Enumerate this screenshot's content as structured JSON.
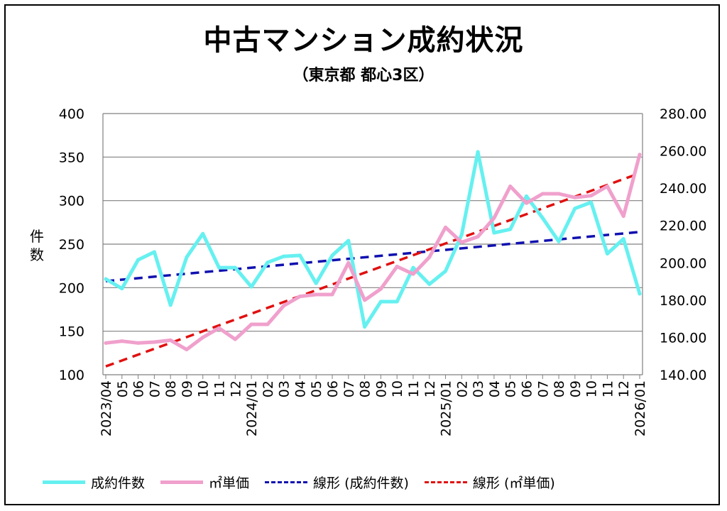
{
  "chart_data": {
    "type": "line",
    "title": "中古マンション成約状況",
    "subtitle": "（東京都 都心3区）",
    "ylabel_left": "件数",
    "left_axis": {
      "min": 100,
      "max": 400,
      "step": 50,
      "ticks": [
        "100",
        "150",
        "200",
        "250",
        "300",
        "350",
        "400"
      ]
    },
    "right_axis": {
      "min": 140,
      "max": 280,
      "step": 20,
      "ticks": [
        "140.00",
        "160.00",
        "180.00",
        "200.00",
        "220.00",
        "240.00",
        "260.00",
        "280.00"
      ]
    },
    "categories": [
      "2023/04",
      "05",
      "06",
      "07",
      "08",
      "09",
      "10",
      "11",
      "12",
      "2024/01",
      "02",
      "03",
      "04",
      "05",
      "06",
      "07",
      "08",
      "09",
      "10",
      "11",
      "12",
      "2025/01",
      "02",
      "03",
      "04",
      "05",
      "06",
      "07",
      "08",
      "09",
      "10",
      "11",
      "12",
      "2026/01"
    ],
    "series": [
      {
        "name": "成約件数",
        "axis": "left",
        "color": "#66f0f0",
        "values": [
          210,
          199,
          232,
          241,
          180,
          235,
          262,
          223,
          223,
          201,
          229,
          236,
          237,
          205,
          237,
          254,
          155,
          184,
          184,
          223,
          204,
          219,
          261,
          356,
          263,
          267,
          305,
          280,
          253,
          291,
          298,
          239,
          256,
          193
        ]
      },
      {
        "name": "㎡単価",
        "axis": "right",
        "color": "#f0a0cc",
        "values": [
          157,
          158,
          157,
          157.5,
          158.5,
          153.5,
          160,
          165,
          159,
          167,
          167,
          177,
          182,
          183,
          183,
          200,
          180,
          186,
          198,
          194,
          203,
          219,
          211,
          214,
          224,
          241,
          232,
          237,
          237,
          235,
          236,
          241,
          225,
          258
        ]
      }
    ],
    "trendlines": [
      {
        "name": "線形 (成約件数)",
        "axis": "left",
        "color": "#1010b0",
        "start": 207.5,
        "end": 264
      },
      {
        "name": "線形 (㎡単価)",
        "axis": "right",
        "color": "#e01010",
        "start": 144.5,
        "end": 248
      }
    ],
    "legend": [
      "成約件数",
      "㎡単価",
      "線形 (成約件数)",
      "線形 (㎡単価)"
    ]
  }
}
